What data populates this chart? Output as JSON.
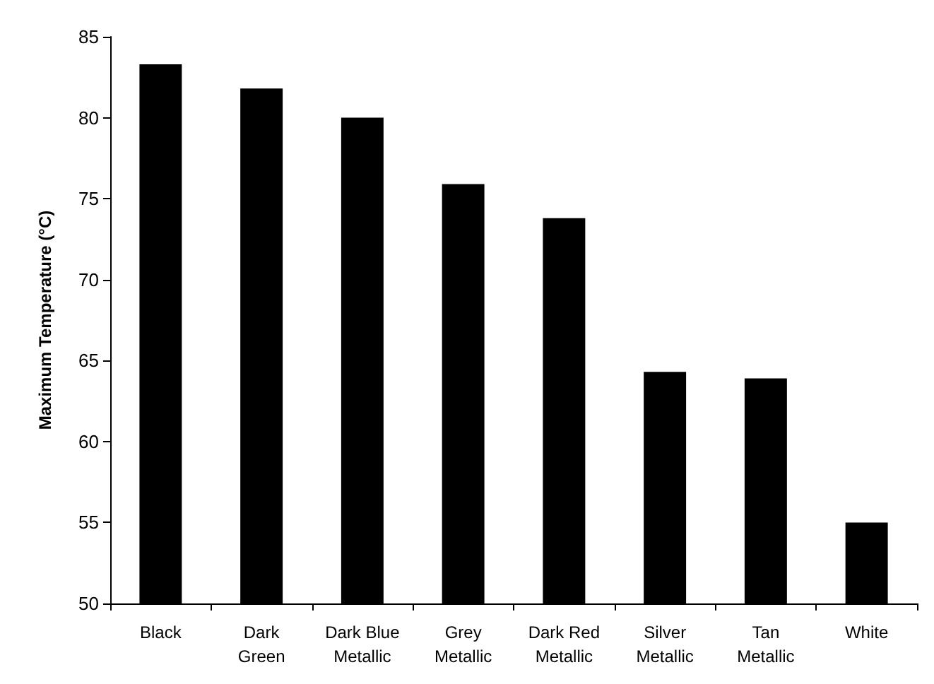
{
  "chart_data": {
    "type": "bar",
    "ylabel": "Maximum Temperature (°C)",
    "categories": [
      "Black",
      "Dark\nGreen",
      "Dark Blue\nMetallic",
      "Grey\nMetallic",
      "Dark Red\nMetallic",
      "Silver\nMetallic",
      "Tan\nMetallic",
      "White"
    ],
    "values": [
      83.3,
      81.8,
      80.0,
      75.9,
      73.8,
      64.3,
      63.9,
      55.0
    ],
    "color": "#000000",
    "ylim": [
      50,
      85
    ],
    "yticks": [
      50,
      55,
      60,
      65,
      70,
      75,
      80,
      85
    ],
    "grid": false
  }
}
